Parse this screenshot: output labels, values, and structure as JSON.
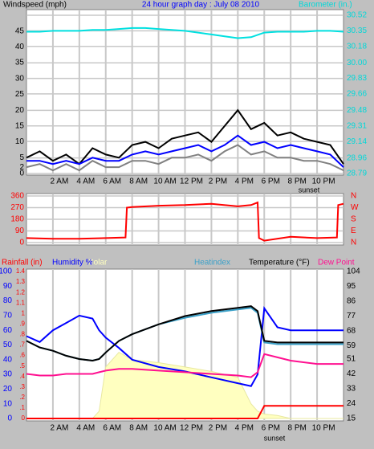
{
  "chart_data": [
    {
      "type": "line",
      "title": "24 hour graph day : July 08 2010",
      "ylabel": "Windspeed (mph)",
      "y2label": "Barometer (in.)",
      "annotation": "sunset",
      "xlim": [
        0,
        24
      ],
      "xticks": [
        {
          "value": 2,
          "label": "2 AM"
        },
        {
          "value": 4,
          "label": "4 AM"
        },
        {
          "value": 6,
          "label": "6 AM"
        },
        {
          "value": 8,
          "label": "8 AM"
        },
        {
          "value": 10,
          "label": "10 AM"
        },
        {
          "value": 12,
          "label": "12 PM"
        },
        {
          "value": 14,
          "label": "2 PM"
        },
        {
          "value": 16,
          "label": "4 PM"
        },
        {
          "value": 18,
          "label": "6 PM"
        },
        {
          "value": 20,
          "label": "8 PM"
        },
        {
          "value": 22,
          "label": "10 PM"
        }
      ],
      "ylim": [
        0,
        50
      ],
      "yticks": [
        0,
        2,
        5,
        10,
        15,
        20,
        25,
        30,
        35,
        40,
        45
      ],
      "y2lim": [
        28.79,
        30.52
      ],
      "y2ticks": [
        28.79,
        28.96,
        29.14,
        29.31,
        29.48,
        29.66,
        29.83,
        {
          "value": 30.0,
          "label": "30.00"
        },
        30.18,
        30.35,
        30.52
      ],
      "grid": "y2",
      "x": [
        0,
        1,
        2,
        3,
        4,
        5,
        6,
        7,
        8,
        9,
        10,
        11,
        12,
        13,
        14,
        15,
        16,
        17,
        18,
        19,
        20,
        21,
        22,
        23,
        24
      ],
      "series": [
        {
          "color": "#808080",
          "values": [
            2,
            3,
            1,
            3,
            1,
            4,
            2,
            2,
            4,
            4,
            3,
            5,
            5,
            6,
            4,
            7,
            9,
            6,
            7,
            5,
            5,
            4,
            4,
            3,
            1
          ]
        },
        {
          "color": "#000000",
          "values": [
            5,
            7,
            4,
            6,
            3,
            8,
            6,
            5,
            9,
            10,
            8,
            11,
            12,
            13,
            10,
            15,
            20,
            14,
            16,
            12,
            13,
            11,
            10,
            9,
            3
          ]
        },
        {
          "color": "#0000ff",
          "values": [
            4,
            4,
            3,
            4,
            3,
            5,
            4,
            4,
            6,
            7,
            6,
            7,
            8,
            9,
            7,
            9,
            12,
            9,
            10,
            8,
            9,
            8,
            7,
            6,
            2
          ]
        },
        {
          "color": "#00e0e0",
          "axis": "y2",
          "values": [
            30.34,
            30.34,
            30.35,
            30.35,
            30.35,
            30.36,
            30.36,
            30.37,
            30.38,
            30.38,
            30.37,
            30.36,
            30.35,
            30.33,
            30.31,
            30.29,
            30.27,
            30.28,
            30.33,
            30.34,
            30.34,
            30.34,
            30.35,
            30.35,
            30.34
          ]
        }
      ]
    },
    {
      "type": "line",
      "xlim": [
        0,
        24
      ],
      "xticks": [
        2,
        4,
        6,
        8,
        10,
        12,
        14,
        16,
        18,
        20,
        22
      ],
      "ylim": [
        0,
        360
      ],
      "yticks": [
        0,
        90,
        180,
        270,
        360
      ],
      "y2ticks": [
        {
          "value": 0,
          "label": "N"
        },
        {
          "value": 90,
          "label": "E"
        },
        {
          "value": 180,
          "label": "S"
        },
        {
          "value": 270,
          "label": "W"
        },
        {
          "value": 360,
          "label": "N"
        }
      ],
      "grid": "y",
      "x": [
        0,
        2,
        4,
        6,
        7.5,
        7.6,
        8,
        10,
        12,
        14,
        16,
        17,
        17.5,
        17.6,
        18,
        20,
        22,
        23.5,
        23.6,
        24
      ],
      "series": [
        {
          "color": "#ff0000",
          "values": [
            35,
            30,
            30,
            35,
            40,
            270,
            275,
            285,
            290,
            300,
            280,
            290,
            310,
            35,
            15,
            45,
            35,
            40,
            290,
            300
          ]
        }
      ]
    },
    {
      "type": "line",
      "annotation": "sunset",
      "xlim": [
        0,
        24
      ],
      "xticks": [
        {
          "value": 2,
          "label": "2 AM"
        },
        {
          "value": 4,
          "label": "4 AM"
        },
        {
          "value": 6,
          "label": "6 AM"
        },
        {
          "value": 8,
          "label": "8 AM"
        },
        {
          "value": 10,
          "label": "10 AM"
        },
        {
          "value": 12,
          "label": "12 PM"
        },
        {
          "value": 14,
          "label": "2 PM"
        },
        {
          "value": 16,
          "label": "4 PM"
        },
        {
          "value": 18,
          "label": "6 PM"
        },
        {
          "value": 20,
          "label": "8 PM"
        },
        {
          "value": 22,
          "label": "10 PM"
        }
      ],
      "ylim": [
        0,
        100
      ],
      "yticks": [
        0,
        10,
        20,
        30,
        40,
        50,
        60,
        70,
        80,
        90,
        100
      ],
      "y2lim": [
        15,
        104
      ],
      "y2ticks": [
        15,
        24,
        33,
        42,
        51,
        59,
        68,
        77,
        86,
        95,
        104
      ],
      "y3lim": [
        0,
        1.4
      ],
      "y3ticks": [
        0,
        {
          "value": 0.1,
          "label": ".1"
        },
        {
          "value": 0.2,
          "label": ".2"
        },
        {
          "value": 0.3,
          "label": ".3"
        },
        {
          "value": 0.4,
          "label": ".4"
        },
        {
          "value": 0.5,
          "label": ".5"
        },
        {
          "value": 0.6,
          "label": ".6"
        },
        {
          "value": 0.7,
          "label": ".7"
        },
        {
          "value": 0.8,
          "label": ".8"
        },
        {
          "value": 0.9,
          "label": ".9"
        },
        1,
        1.1,
        1.2,
        1.3,
        1.4
      ],
      "x": [
        0,
        1,
        2,
        3,
        4,
        5,
        5.5,
        6,
        7,
        8,
        10,
        12,
        14,
        16,
        17,
        17.5,
        18,
        19,
        20,
        22,
        24
      ],
      "series": [
        {
          "name": "Solar",
          "color": "#ffffc0",
          "fill": true,
          "values": [
            0,
            0,
            0,
            0,
            0,
            0,
            5,
            35,
            45,
            40,
            38,
            35,
            32,
            28,
            10,
            5,
            3,
            2,
            0,
            0,
            0
          ]
        },
        {
          "name": "Rainfall (in)",
          "color": "#ff0000",
          "axis": "y3",
          "values": [
            0,
            0,
            0,
            0,
            0,
            0,
            0,
            0,
            0,
            0,
            0,
            0,
            0,
            0,
            0,
            0,
            0.12,
            0.12,
            0.12,
            0.12,
            0.12
          ]
        },
        {
          "name": "Humidity %",
          "color": "#0000ff",
          "values": [
            56,
            52,
            60,
            65,
            70,
            68,
            60,
            55,
            48,
            40,
            35,
            32,
            28,
            24,
            22,
            30,
            75,
            62,
            60,
            60,
            60
          ]
        },
        {
          "name": "Heatindex",
          "color": "#3aa0c8",
          "axis": "y2",
          "values": [
            62,
            58,
            56,
            53,
            51,
            50,
            51,
            55,
            62,
            66,
            72,
            76,
            79,
            81,
            82,
            79,
            61,
            60,
            60,
            60,
            60
          ]
        },
        {
          "name": "Temperature (°F)",
          "color": "#000000",
          "axis": "y2",
          "values": [
            62,
            58,
            56,
            53,
            51,
            50,
            51,
            55,
            62,
            66,
            72,
            77,
            80,
            82,
            83,
            80,
            62,
            61,
            61,
            61,
            61
          ]
        },
        {
          "name": "Dew Point",
          "color": "#ff1090",
          "axis": "y2",
          "values": [
            42,
            41,
            41,
            42,
            42,
            42,
            43,
            44,
            45,
            45,
            44,
            43,
            42,
            41,
            40,
            43,
            54,
            52,
            50,
            48,
            48
          ]
        }
      ]
    }
  ]
}
